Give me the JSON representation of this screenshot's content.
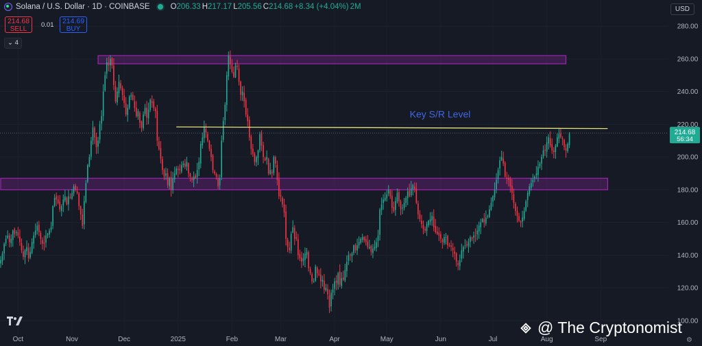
{
  "header": {
    "title": "Solana / U.S. Dollar · 1D · COINBASE",
    "open_label": "O",
    "open": "206.33",
    "high_label": "H",
    "high": "217.17",
    "low_label": "L",
    "low": "205.56",
    "close_label": "C",
    "close": "214.68",
    "change": "+8.34 (+4.04%)",
    "volume": "2M"
  },
  "trade": {
    "sell_price": "214.68",
    "sell_label": "SELL",
    "spread": "0.01",
    "buy_price": "214.69",
    "buy_label": "BUY"
  },
  "indicators_collapsed": "4",
  "currency_button": "USD",
  "price_tag": {
    "price": "214.68",
    "countdown": "56:34"
  },
  "annotation": "Key S/R Level",
  "watermark": "@ The Cryptonomist",
  "tv_logo": "17",
  "colors": {
    "up": "#22ab94",
    "down": "#f23645",
    "zone": "#9c27b0",
    "sr_line": "#e6e27a",
    "annotation": "#3f67e0",
    "background": "#161a25"
  },
  "chart_data": {
    "type": "candlestick",
    "symbol": "Solana / U.S. Dollar",
    "interval": "1D",
    "exchange": "COINBASE",
    "ylim": [
      92,
      296
    ],
    "y_ticks": [
      100,
      120,
      140,
      160,
      180,
      200,
      220,
      240,
      260,
      280
    ],
    "x_ticks": [
      {
        "label": "Oct",
        "date": "2024-10-01"
      },
      {
        "label": "Nov",
        "date": "2024-11-01"
      },
      {
        "label": "Dec",
        "date": "2024-12-01"
      },
      {
        "label": "2025",
        "date": "2025-01-01"
      },
      {
        "label": "Feb",
        "date": "2025-02-01"
      },
      {
        "label": "Mar",
        "date": "2025-03-01"
      },
      {
        "label": "Apr",
        "date": "2025-04-01"
      },
      {
        "label": "May",
        "date": "2025-05-01"
      },
      {
        "label": "Jun",
        "date": "2025-06-01"
      },
      {
        "label": "Jul",
        "date": "2025-07-01"
      },
      {
        "label": "Aug",
        "date": "2025-08-01"
      },
      {
        "label": "Sep",
        "date": "2025-09-01"
      }
    ],
    "start_date": "2024-09-21",
    "closes": [
      137,
      141,
      147,
      150,
      152,
      148,
      150,
      155,
      153,
      154,
      152,
      148,
      143,
      139,
      143,
      145,
      138,
      142,
      148,
      152,
      155,
      158,
      154,
      150,
      147,
      147,
      152,
      153,
      155,
      157,
      170,
      175,
      174,
      172,
      168,
      170,
      174,
      176,
      171,
      176,
      175,
      178,
      182,
      180,
      178,
      170,
      165,
      158,
      173,
      184,
      195,
      200,
      210,
      218,
      212,
      206,
      210,
      220,
      225,
      240,
      250,
      258,
      256,
      260,
      256,
      244,
      234,
      240,
      246,
      242,
      238,
      233,
      226,
      230,
      237,
      238,
      235,
      230,
      225,
      228,
      221,
      218,
      226,
      230,
      224,
      229,
      235,
      233,
      230,
      228,
      210,
      205,
      199,
      192,
      188,
      190,
      183,
      187,
      180,
      187,
      190,
      193,
      192,
      192,
      195,
      196,
      194,
      197,
      190,
      188,
      186,
      188,
      187,
      192,
      197,
      208,
      212,
      218,
      215,
      210,
      205,
      200,
      192,
      190,
      188,
      182,
      187,
      210,
      222,
      232,
      250,
      262,
      257,
      252,
      249,
      256,
      255,
      246,
      238,
      240,
      234,
      226,
      222,
      212,
      205,
      202,
      197,
      200,
      204,
      214,
      207,
      200,
      198,
      200,
      190,
      192,
      190,
      200,
      196,
      186,
      176,
      176,
      171,
      166,
      150,
      145,
      143,
      153,
      157,
      150,
      150,
      140,
      138,
      136,
      138,
      141,
      142,
      132,
      129,
      124,
      124,
      133,
      129,
      128,
      124,
      125,
      119,
      120,
      116,
      108,
      117,
      119,
      124,
      123,
      129,
      122,
      126,
      125,
      131,
      136,
      140,
      140,
      141,
      146,
      143,
      146,
      148,
      150,
      151,
      149,
      148,
      145,
      145,
      142,
      144,
      145,
      148,
      152,
      168,
      171,
      174,
      175,
      177,
      180,
      176,
      169,
      167,
      173,
      178,
      173,
      168,
      169,
      172,
      175,
      179,
      176,
      181,
      183,
      180,
      172,
      165,
      162,
      159,
      156,
      155,
      159,
      161,
      162,
      164,
      157,
      154,
      153,
      152,
      150,
      148,
      151,
      151,
      146,
      146,
      145,
      143,
      141,
      136,
      134,
      137,
      143,
      145,
      146,
      146,
      148,
      151,
      150,
      152,
      152,
      155,
      158,
      160,
      162,
      160,
      163,
      164,
      168,
      172,
      176,
      180,
      186,
      192,
      198,
      200,
      196,
      188,
      187,
      186,
      182,
      178,
      172,
      167,
      164,
      161,
      160,
      163,
      167,
      173,
      178,
      182,
      184,
      186,
      188,
      190,
      194,
      196,
      200,
      204,
      204,
      209,
      212,
      207,
      204,
      203,
      207,
      212,
      214,
      212,
      211,
      206,
      204,
      208,
      214
    ],
    "zones": [
      {
        "name": "upper-zone",
        "start_date": "2024-11-16",
        "end_date": "2025-08-12",
        "low": 257,
        "high": 262
      },
      {
        "name": "lower-zone",
        "start_date": "2024-09-21",
        "end_date": "2025-09-05",
        "low": 180,
        "high": 187
      }
    ],
    "sr_line": {
      "label": "Key S/R Level",
      "start_date": "2024-12-31",
      "end_date": "2025-09-05",
      "start_price": 218.4,
      "end_price": 217.4
    },
    "last_price": 214.68
  }
}
